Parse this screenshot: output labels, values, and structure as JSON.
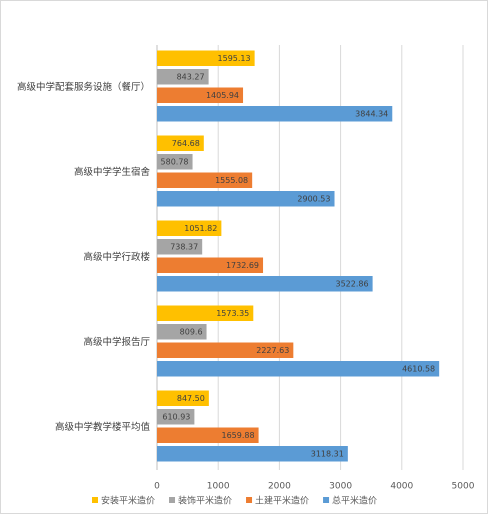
{
  "chart_data": {
    "type": "bar",
    "orientation": "horizontal",
    "categories": [
      "高级中学配套服务设施（餐厅）",
      "高级中学学生宿舍",
      "高级中学行政楼",
      "高级中学报告厅",
      "高级中学教学楼平均值"
    ],
    "series": [
      {
        "name": "安装平米造价",
        "color": "#ffc000",
        "values": [
          1595.13,
          764.68,
          1051.82,
          1573.35,
          847.5
        ],
        "value_labels": [
          "1595.13",
          "764.68",
          "1051.82",
          "1573.35",
          "847.50"
        ]
      },
      {
        "name": "装饰平米造价",
        "color": "#a5a5a5",
        "values": [
          843.27,
          580.78,
          738.37,
          809.6,
          610.93
        ]
      },
      {
        "name": "土建平米造价",
        "color": "#ed7d31",
        "values": [
          1405.94,
          1555.08,
          1732.69,
          2227.63,
          1659.88
        ]
      },
      {
        "name": "总平米造价",
        "color": "#5b9bd5",
        "values": [
          3844.34,
          2900.53,
          3522.86,
          4610.58,
          3118.31
        ]
      }
    ],
    "xlim": [
      0,
      5000
    ],
    "xticks": [
      0,
      1000,
      2000,
      3000,
      4000,
      5000
    ],
    "grid": true
  }
}
